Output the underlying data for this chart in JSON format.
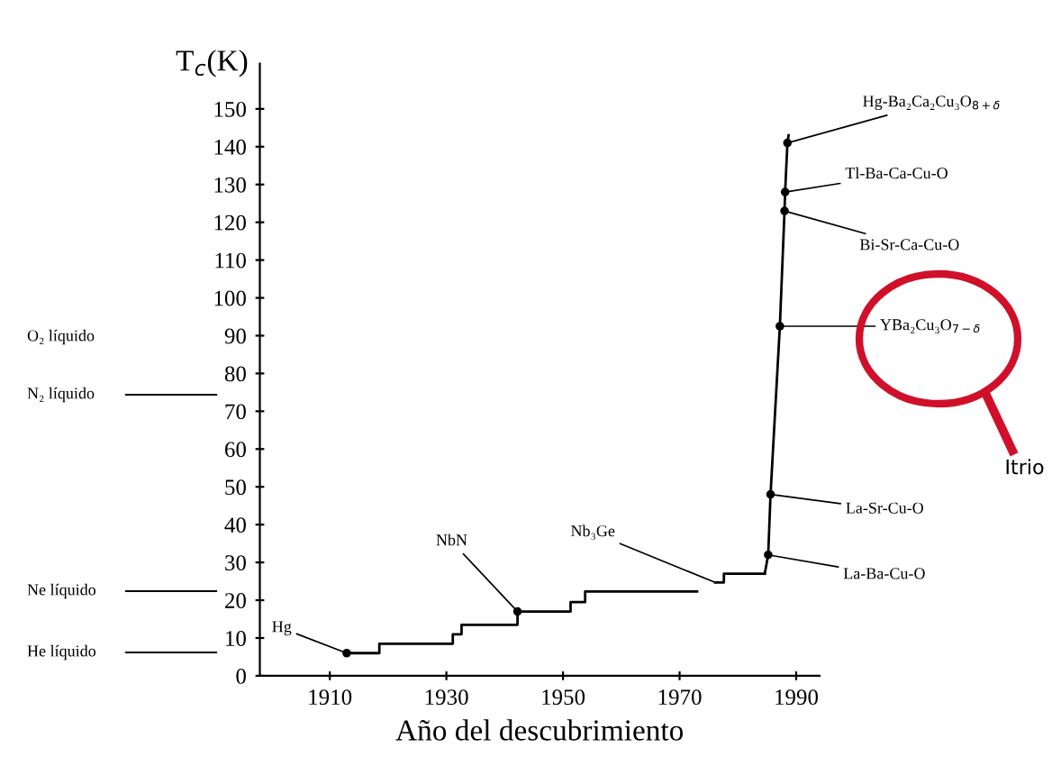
{
  "chart_data": {
    "type": "step",
    "ylabel": "T$_{c}$(K)",
    "xlabel": "Año del descubrimiento",
    "xlim": [
      1898,
      1994
    ],
    "xticks": [
      1910,
      1930,
      1950,
      1970,
      1990
    ],
    "ylim": [
      0,
      162
    ],
    "yticks": [
      0,
      10,
      20,
      30,
      40,
      50,
      60,
      70,
      80,
      90,
      100,
      110,
      120,
      130,
      140,
      150
    ],
    "grid": false,
    "legend": false,
    "series": [
      {
        "color": "#000000",
        "x": [
          1912.9,
          1918.5,
          1931.1,
          1932.6,
          1942.2,
          1951.3,
          1953.8,
          1973.0,
          1976.1,
          1977.6,
          1984.6
        ],
        "values": [
          6,
          8.5,
          11,
          13.5,
          17,
          19.5,
          22.3,
          null,
          24.7,
          27,
          27
        ]
      },
      {
        "type": "line",
        "color": "#000000",
        "x": [
          1984.6,
          1985.2,
          1985.6,
          1987.2,
          1988.0,
          1988.1,
          1988.5,
          1988.7
        ],
        "values": [
          27,
          32,
          48,
          92.5,
          123,
          128,
          141,
          143
        ]
      },
      {
        "type": "scatter",
        "color": "#000000",
        "marker": "circle",
        "x": [
          1912.9,
          1942.2,
          1985.2,
          1985.6,
          1987.2,
          1988.0,
          1988.1,
          1988.5
        ],
        "values": [
          6,
          17,
          32,
          48,
          92.5,
          123,
          128,
          141
        ]
      }
    ],
    "annotations": [
      "He líquido",
      "Ne líquido",
      "N₂ líquido",
      "O₂ líquido",
      {
        "text": "Hg",
        "x": 1912.9,
        "y": 6
      },
      {
        "text": "NbN",
        "x": 1942.2,
        "y": 17
      },
      {
        "text": "Nb₃Ge",
        "x": 1976.1,
        "y": 24.7
      },
      {
        "text": "La-Ba-Cu-O",
        "x": 1985.2,
        "y": 32
      },
      {
        "text": "La-Sr-Cu-O",
        "x": 1985.6,
        "y": 48
      },
      {
        "text": "YBa₂Cu₃O$_{7−δ}$",
        "x": 1987.2,
        "y": 92.5
      },
      {
        "text": "Bi-Sr-Ca-Cu-O",
        "x": 1988.0,
        "y": 123
      },
      {
        "text": "Tl-Ba-Ca-Cu-O",
        "x": 1988.1,
        "y": 128
      },
      {
        "text": "Hg-Ba₂Ca₂Cu₃O$_{8+δ}$",
        "x": 1988.5,
        "y": 141
      },
      "Itrio"
    ]
  }
}
